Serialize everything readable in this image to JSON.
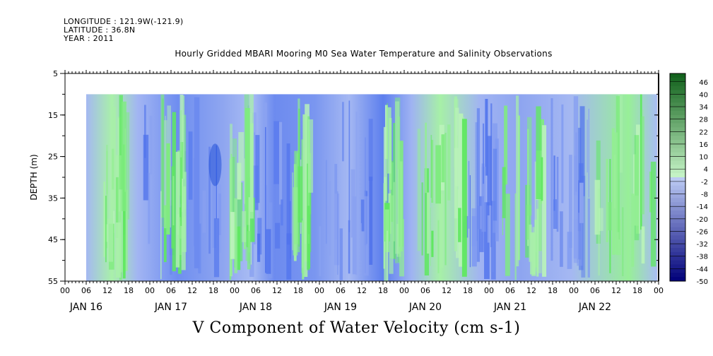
{
  "header": {
    "longitude": "LONGITUDE : 121.9W(-121.9)",
    "latitude": "LATITUDE : 36.8N",
    "year": "YEAR : 2011"
  },
  "chart_data": {
    "type": "heatmap",
    "title": "Hourly Gridded MBARI Mooring M0 Sea Water Temperature and Salinity Observations",
    "xlabel": "V Component of Water Velocity (cm s-1)",
    "ylabel": "DEPTH (m)",
    "y_ticks": [
      5,
      15,
      25,
      35,
      45,
      55
    ],
    "ylim": [
      55,
      5
    ],
    "data_depth_range": [
      10,
      55
    ],
    "hour_tick_labels": [
      "00",
      "06",
      "12",
      "18"
    ],
    "date_labels": [
      "JAN 16",
      "JAN 17",
      "JAN 18",
      "JAN 19",
      "JAN 20",
      "JAN 21",
      "JAN 22"
    ],
    "x_start": "2011-01-16 00:00",
    "x_end": "2011-01-23 00:00",
    "data_start": "2011-01-16 06:00",
    "colorbar": {
      "labels": [
        "46",
        "40",
        "34",
        "28",
        "22",
        "16",
        "10",
        "4",
        "-2",
        "-8",
        "-14",
        "-20",
        "-26",
        "-32",
        "-38",
        "-44",
        "-50"
      ],
      "min": -50,
      "max": 50,
      "step": 6
    },
    "colors": {
      "background": "#ffffff",
      "axis": "#000000"
    }
  }
}
